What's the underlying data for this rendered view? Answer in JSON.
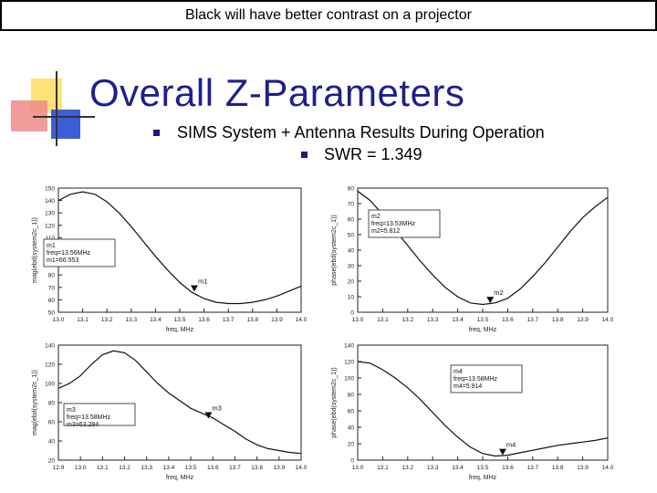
{
  "banner": "Black will have better contrast on a projector",
  "title": "Overall Z-Parameters",
  "bullet1": "SIMS System + Antenna Results During Operation",
  "bullet2": "SWR = 1.349",
  "chart_data": [
    {
      "type": "line",
      "ylabel": "mag(ebd(system2c_1))",
      "xlabel": "freq, MHz",
      "xlim": [
        13.0,
        14.0
      ],
      "ylim": [
        50,
        150
      ],
      "xticks": [
        "13.0",
        "13.1",
        "13.2",
        "13.3",
        "13.4",
        "13.5",
        "13.6",
        "13.7",
        "13.8",
        "13.9",
        "14.0"
      ],
      "yticks": [
        "50",
        "60",
        "70",
        "80",
        "90",
        "100",
        "110",
        "120",
        "130",
        "140",
        "150"
      ],
      "x": [
        13.0,
        13.05,
        13.1,
        13.15,
        13.2,
        13.25,
        13.3,
        13.35,
        13.4,
        13.45,
        13.5,
        13.55,
        13.6,
        13.65,
        13.7,
        13.75,
        13.8,
        13.85,
        13.9,
        13.95,
        14.0
      ],
      "y": [
        140,
        145,
        147,
        145,
        139,
        130,
        119,
        107,
        95,
        84,
        74,
        66,
        61,
        58,
        57,
        57,
        58,
        60,
        63,
        67,
        71
      ],
      "marker": {
        "name": "m1",
        "x": 13.56,
        "y": 66.553
      },
      "marker_label": [
        "m1",
        "freq=13.56MHz",
        "m1=66.553"
      ]
    },
    {
      "type": "line",
      "ylabel": "phase(ebd(system2c_1))",
      "xlabel": "freq, MHz",
      "xlim": [
        13.0,
        14.0
      ],
      "ylim": [
        0,
        80
      ],
      "xticks": [
        "13.0",
        "13.1",
        "13.2",
        "13.3",
        "13.4",
        "13.5",
        "13.6",
        "13.7",
        "13.8",
        "13.9",
        "14.0"
      ],
      "yticks": [
        "0",
        "10",
        "20",
        "30",
        "40",
        "50",
        "60",
        "70",
        "80"
      ],
      "x": [
        13.0,
        13.05,
        13.1,
        13.15,
        13.2,
        13.25,
        13.3,
        13.35,
        13.4,
        13.45,
        13.5,
        13.55,
        13.6,
        13.65,
        13.7,
        13.75,
        13.8,
        13.85,
        13.9,
        13.95,
        14.0
      ],
      "y": [
        78,
        72,
        63,
        53,
        43,
        33,
        24,
        16,
        10,
        6,
        5,
        6,
        9,
        15,
        23,
        32,
        42,
        52,
        61,
        68,
        74
      ],
      "marker": {
        "name": "m2",
        "x": 13.53,
        "y": 5.812
      },
      "marker_label": [
        "m2",
        "freq=13.53MHz",
        "m2=5.812"
      ]
    },
    {
      "type": "line",
      "ylabel": "mag(ebd(system2c_1))",
      "xlabel": "freq, MHz",
      "xlim": [
        12.9,
        14.0
      ],
      "ylim": [
        20,
        140
      ],
      "xticks": [
        "12.9",
        "13.0",
        "13.1",
        "13.2",
        "13.3",
        "13.4",
        "13.5",
        "13.6",
        "13.7",
        "13.8",
        "13.9",
        "14.0"
      ],
      "yticks": [
        "20",
        "40",
        "60",
        "80",
        "100",
        "120",
        "140"
      ],
      "x": [
        12.9,
        12.95,
        13.0,
        13.05,
        13.1,
        13.15,
        13.2,
        13.25,
        13.3,
        13.35,
        13.4,
        13.45,
        13.5,
        13.55,
        13.6,
        13.65,
        13.7,
        13.75,
        13.8,
        13.85,
        13.9,
        13.95,
        14.0
      ],
      "y": [
        95,
        100,
        108,
        120,
        130,
        134,
        132,
        124,
        112,
        100,
        90,
        82,
        74,
        69,
        64,
        57,
        50,
        42,
        36,
        32,
        30,
        28,
        27
      ],
      "marker": {
        "name": "m3",
        "x": 13.58,
        "y": 63.284
      },
      "marker_label": [
        "m3",
        "freq=13.58MHz",
        "m3=63.284"
      ]
    },
    {
      "type": "line",
      "ylabel": "phase(ebd(system2c_1))",
      "xlabel": "freq, MHz",
      "xlim": [
        13.0,
        14.0
      ],
      "ylim": [
        0,
        140
      ],
      "xticks": [
        "13.0",
        "13.1",
        "13.2",
        "13.3",
        "13.4",
        "13.5",
        "13.6",
        "13.7",
        "13.8",
        "13.9",
        "14.0"
      ],
      "yticks": [
        "0",
        "20",
        "40",
        "60",
        "80",
        "100",
        "120",
        "140"
      ],
      "x": [
        13.0,
        13.05,
        13.1,
        13.15,
        13.2,
        13.25,
        13.3,
        13.35,
        13.4,
        13.45,
        13.5,
        13.55,
        13.6,
        13.65,
        13.7,
        13.75,
        13.8,
        13.85,
        13.9,
        13.95,
        14.0
      ],
      "y": [
        120,
        118,
        110,
        100,
        88,
        74,
        58,
        42,
        28,
        16,
        8,
        5,
        6,
        9,
        12,
        15,
        18,
        20,
        22,
        24,
        27
      ],
      "marker": {
        "name": "m4",
        "x": 13.58,
        "y": 5.914
      },
      "marker_label": [
        "m4",
        "freq=13.58MHz",
        "m4=5.914"
      ]
    }
  ]
}
